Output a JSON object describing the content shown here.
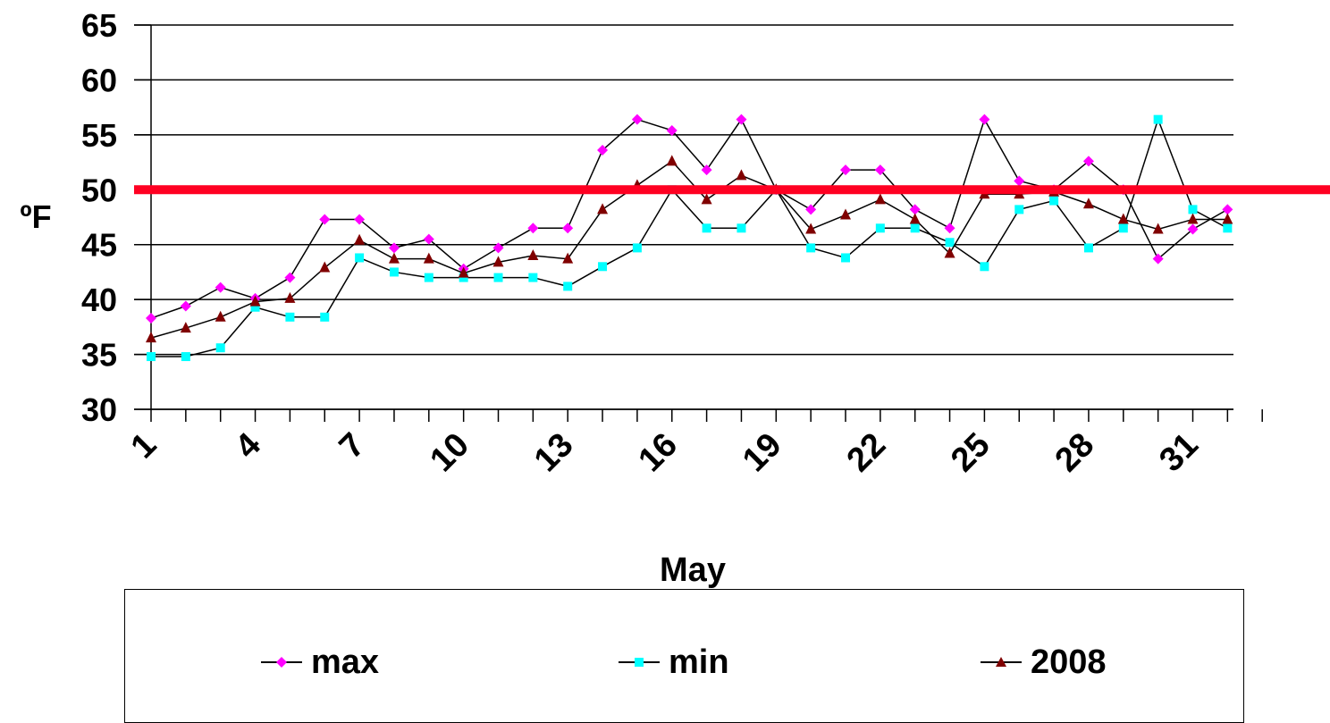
{
  "chart_data": {
    "type": "line",
    "title": "",
    "xlabel": "May",
    "ylabel": "ºF",
    "ylim": [
      30,
      65
    ],
    "yticks": [
      30,
      35,
      40,
      45,
      50,
      55,
      60,
      65
    ],
    "x": [
      1,
      2,
      3,
      4,
      5,
      6,
      7,
      8,
      9,
      10,
      11,
      12,
      13,
      14,
      15,
      16,
      17,
      18,
      19,
      20,
      21,
      22,
      23,
      24,
      25,
      26,
      27,
      28,
      29,
      30,
      31,
      32
    ],
    "xtick_labels": [
      "1",
      "4",
      "7",
      "10",
      "13",
      "16",
      "19",
      "22",
      "25",
      "28",
      "31"
    ],
    "grid": "horizontal",
    "legend_position": "bottom",
    "reference_line": {
      "y": 50,
      "color": "#ff0022"
    },
    "series": [
      {
        "name": "max",
        "color": "#ff00ff",
        "marker": "diamond",
        "values": [
          38.3,
          39.4,
          41.1,
          40.1,
          42.0,
          47.3,
          47.3,
          44.7,
          45.5,
          42.8,
          44.7,
          46.5,
          46.5,
          53.6,
          56.4,
          55.4,
          51.8,
          56.4,
          50.0,
          48.2,
          51.8,
          51.8,
          48.2,
          46.5,
          56.4,
          50.8,
          50.0,
          52.6,
          50.0,
          43.7,
          46.4,
          48.2
        ]
      },
      {
        "name": "min",
        "color": "#00ffff",
        "marker": "square",
        "values": [
          34.8,
          34.8,
          35.6,
          39.3,
          38.4,
          38.4,
          43.8,
          42.5,
          42.0,
          42.0,
          42.0,
          42.0,
          41.2,
          43.0,
          44.7,
          50.0,
          46.5,
          46.5,
          50.0,
          44.7,
          43.8,
          46.5,
          46.5,
          45.2,
          43.0,
          48.2,
          49.0,
          44.7,
          46.5,
          56.4,
          48.2,
          46.5
        ]
      },
      {
        "name": "2008",
        "color": "#800000",
        "marker": "triangle",
        "values": [
          36.5,
          37.4,
          38.4,
          39.8,
          40.1,
          42.9,
          45.4,
          43.7,
          43.7,
          42.4,
          43.4,
          44.0,
          43.7,
          48.2,
          50.4,
          52.6,
          49.1,
          51.3,
          50.0,
          46.4,
          47.7,
          49.1,
          47.3,
          44.2,
          49.6,
          49.6,
          49.8,
          48.7,
          47.3,
          46.4,
          47.3,
          47.3
        ]
      }
    ]
  }
}
